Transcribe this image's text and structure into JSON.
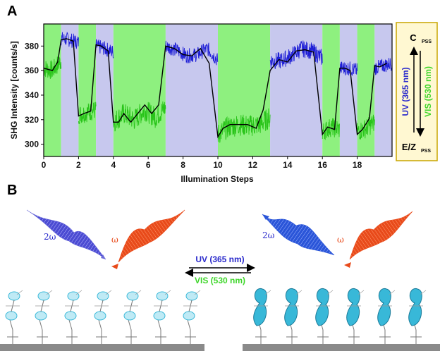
{
  "panel_a_label": "A",
  "panel_b_label": "B",
  "colors": {
    "vis_green": "#8ef07f",
    "uv_lavender": "#c7c8ee",
    "signal_blue": "#1f1fd6",
    "signal_green": "#29c41a",
    "fit_black": "#000000",
    "legend_bg": "#fff8d2",
    "legend_border": "#c9a600",
    "uv_text": "#2b2bcc",
    "vis_text": "#3ed62a",
    "red_pulse": "#e84a1a",
    "blue_pulse": "#2a55d8",
    "molecule": "#38b8d8",
    "substrate": "#8a8a8a"
  },
  "legend": {
    "top_label": "C",
    "top_sub": "PSS",
    "uv_text": "UV (365 nm)",
    "vis_text": "VIS (530 nm)",
    "bottom_label": "E/Z",
    "bottom_sub": "PSS"
  },
  "panel_b": {
    "omega_2_left": "2ω",
    "omega_left": "ω",
    "omega_2_right": "2ω",
    "omega_right": "ω",
    "uv_label": "UV (365 nm)",
    "vis_label": "VIS (530 nm)"
  },
  "chart_data": {
    "type": "line",
    "xlabel": "Illumination Steps",
    "ylabel": "SHG Intensity [counts/s]",
    "xlim": [
      0,
      20
    ],
    "ylim": [
      290,
      398
    ],
    "xticks": [
      0,
      2,
      4,
      6,
      8,
      10,
      12,
      14,
      16,
      18
    ],
    "yticks": [
      300,
      320,
      340,
      360,
      380
    ],
    "bands": [
      {
        "from": 0,
        "to": 1,
        "kind": "VIS"
      },
      {
        "from": 1,
        "to": 2,
        "kind": "UV"
      },
      {
        "from": 2,
        "to": 3,
        "kind": "VIS"
      },
      {
        "from": 3,
        "to": 4,
        "kind": "UV"
      },
      {
        "from": 4,
        "to": 7,
        "kind": "VIS"
      },
      {
        "from": 7,
        "to": 10,
        "kind": "UV"
      },
      {
        "from": 10,
        "to": 13,
        "kind": "VIS"
      },
      {
        "from": 13,
        "to": 16,
        "kind": "UV"
      },
      {
        "from": 16,
        "to": 17,
        "kind": "VIS"
      },
      {
        "from": 17,
        "to": 18,
        "kind": "UV"
      },
      {
        "from": 18,
        "to": 19,
        "kind": "VIS"
      },
      {
        "from": 19,
        "to": 20,
        "kind": "UV"
      }
    ],
    "fit_line": {
      "x": [
        0,
        0.5,
        0.8,
        1.0,
        1.3,
        1.7,
        2.0,
        2.3,
        2.7,
        3.0,
        3.3,
        3.7,
        4.0,
        4.3,
        4.6,
        5.0,
        5.4,
        5.8,
        6.2,
        6.6,
        7.0,
        7.5,
        8.0,
        8.5,
        9.0,
        9.5,
        10.0,
        10.3,
        10.7,
        11.2,
        11.7,
        12.2,
        12.6,
        13.0,
        13.5,
        14.0,
        14.5,
        15.0,
        15.5,
        16.0,
        16.3,
        16.7,
        17.0,
        17.3,
        17.6,
        18.0,
        18.3,
        18.7,
        19.0,
        19.3,
        19.7
      ],
      "y": [
        362,
        360,
        367,
        385,
        386,
        384,
        323,
        325,
        327,
        381,
        380,
        376,
        318,
        318,
        325,
        318,
        325,
        332,
        325,
        332,
        380,
        378,
        373,
        372,
        378,
        366,
        306,
        313,
        316,
        316,
        316,
        313,
        328,
        360,
        369,
        367,
        376,
        377,
        375,
        308,
        314,
        312,
        362,
        362,
        360,
        308,
        312,
        321,
        364,
        363,
        366
      ]
    },
    "signal": {
      "segments": [
        {
          "kind": "VIS",
          "from": 0,
          "to": 1,
          "level": [
            362,
            360,
            368
          ],
          "noise": 8
        },
        {
          "kind": "UV",
          "from": 1,
          "to": 2,
          "level": [
            386,
            385,
            383
          ],
          "noise": 6
        },
        {
          "kind": "VIS",
          "from": 2,
          "to": 3,
          "level": [
            324,
            326,
            328
          ],
          "noise": 8
        },
        {
          "kind": "UV",
          "from": 3,
          "to": 4,
          "level": [
            380,
            378,
            375
          ],
          "noise": 6
        },
        {
          "kind": "VIS",
          "from": 4,
          "to": 7,
          "level": [
            318,
            325,
            320,
            328,
            322,
            330
          ],
          "noise": 9
        },
        {
          "kind": "UV",
          "from": 7,
          "to": 10,
          "level": [
            380,
            377,
            372,
            373,
            378,
            368
          ],
          "noise": 6
        },
        {
          "kind": "VIS",
          "from": 10,
          "to": 13,
          "level": [
            308,
            314,
            316,
            315,
            316,
            322
          ],
          "noise": 9
        },
        {
          "kind": "UV",
          "from": 13,
          "to": 16,
          "level": [
            368,
            368,
            372,
            378,
            376,
            370
          ],
          "noise": 7
        },
        {
          "kind": "VIS",
          "from": 16,
          "to": 17,
          "level": [
            310,
            314,
            312
          ],
          "noise": 8
        },
        {
          "kind": "UV",
          "from": 17,
          "to": 18,
          "level": [
            362,
            362,
            360
          ],
          "noise": 6
        },
        {
          "kind": "VIS",
          "from": 18,
          "to": 19,
          "level": [
            310,
            313,
            318
          ],
          "noise": 8
        },
        {
          "kind": "UV",
          "from": 19,
          "to": 20,
          "level": [
            362,
            364,
            366
          ],
          "noise": 6
        }
      ]
    }
  }
}
